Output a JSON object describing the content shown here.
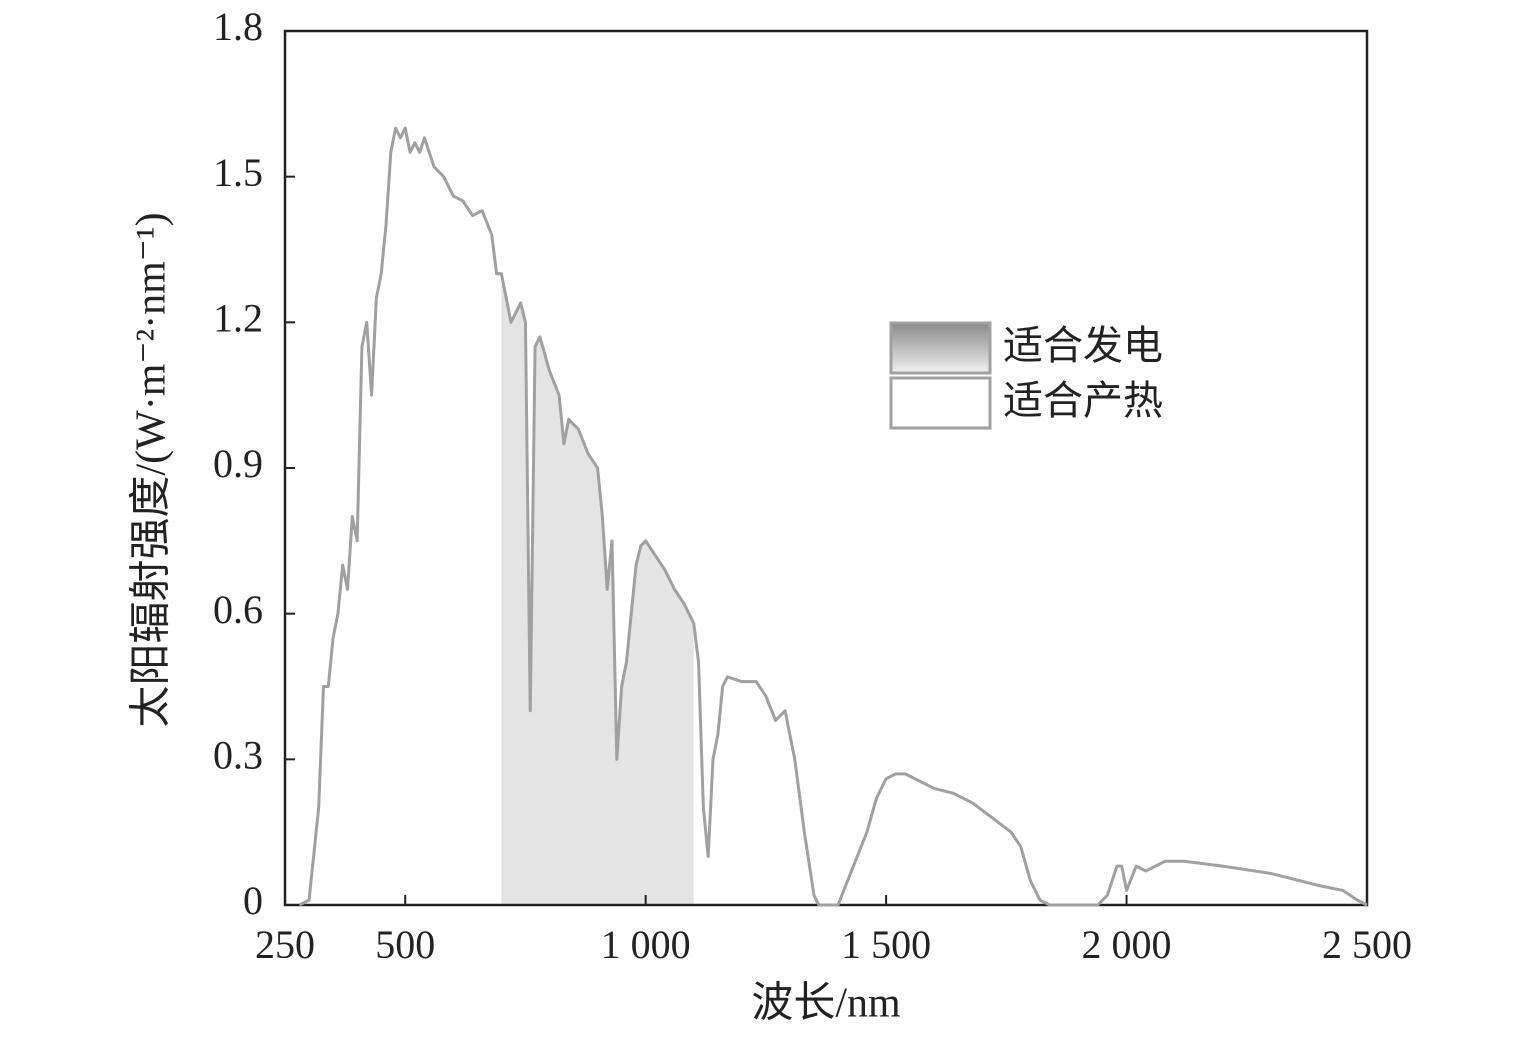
{
  "chart_data": {
    "type": "line",
    "xlabel": "波长/nm",
    "ylabel": "太阳辐射强度/(W·m⁻²·nm⁻¹)",
    "x": [
      280,
      300,
      320,
      330,
      340,
      350,
      360,
      370,
      380,
      390,
      400,
      410,
      420,
      430,
      440,
      450,
      460,
      470,
      480,
      490,
      500,
      510,
      520,
      530,
      540,
      550,
      560,
      580,
      600,
      620,
      640,
      660,
      680,
      690,
      700,
      710,
      720,
      730,
      740,
      750,
      760,
      770,
      780,
      800,
      820,
      830,
      840,
      860,
      880,
      900,
      910,
      920,
      930,
      940,
      950,
      960,
      980,
      990,
      1000,
      1020,
      1040,
      1060,
      1080,
      1100,
      1110,
      1120,
      1130,
      1140,
      1150,
      1160,
      1170,
      1200,
      1230,
      1250,
      1270,
      1290,
      1310,
      1330,
      1350,
      1360,
      1400,
      1420,
      1440,
      1460,
      1480,
      1500,
      1520,
      1540,
      1560,
      1600,
      1640,
      1680,
      1720,
      1760,
      1780,
      1800,
      1820,
      1840,
      1940,
      1960,
      1980,
      1990,
      2000,
      2020,
      2040,
      2080,
      2120,
      2200,
      2300,
      2400,
      2450,
      2480,
      2500
    ],
    "series": [
      {
        "color": "#a0a0a0",
        "values": [
          0,
          0.01,
          0.2,
          0.45,
          0.45,
          0.55,
          0.6,
          0.7,
          0.65,
          0.8,
          0.75,
          1.15,
          1.2,
          1.05,
          1.25,
          1.3,
          1.4,
          1.55,
          1.6,
          1.58,
          1.6,
          1.55,
          1.57,
          1.55,
          1.58,
          1.55,
          1.52,
          1.5,
          1.46,
          1.45,
          1.42,
          1.43,
          1.38,
          1.3,
          1.3,
          1.25,
          1.2,
          1.22,
          1.24,
          1.2,
          0.4,
          1.15,
          1.17,
          1.1,
          1.05,
          0.95,
          1.0,
          0.98,
          0.93,
          0.9,
          0.8,
          0.65,
          0.75,
          0.3,
          0.45,
          0.5,
          0.7,
          0.74,
          0.75,
          0.72,
          0.69,
          0.65,
          0.62,
          0.58,
          0.5,
          0.2,
          0.1,
          0.3,
          0.35,
          0.45,
          0.47,
          0.46,
          0.46,
          0.43,
          0.38,
          0.4,
          0.3,
          0.15,
          0.02,
          0,
          0,
          0.05,
          0.1,
          0.15,
          0.22,
          0.26,
          0.27,
          0.27,
          0.26,
          0.24,
          0.23,
          0.21,
          0.18,
          0.15,
          0.12,
          0.05,
          0.01,
          0,
          0,
          0.02,
          0.08,
          0.08,
          0.03,
          0.08,
          0.07,
          0.09,
          0.09,
          0.08,
          0.065,
          0.04,
          0.03,
          0.01,
          0
        ]
      }
    ],
    "regions": [
      {
        "name": "适合发电",
        "x": [
          700,
          1100
        ],
        "color": "#d8d8d8"
      },
      {
        "name": "适合产热",
        "color": "#ffffff"
      }
    ],
    "xlim": [
      250,
      2500
    ],
    "xticks": [
      250,
      500,
      {
        "value": 1000,
        "label": "1 000"
      },
      {
        "value": 1500,
        "label": "1 500"
      },
      {
        "value": 2000,
        "label": "2 000"
      },
      {
        "value": 2500,
        "label": "2 500"
      }
    ],
    "ylim": [
      0,
      1.8
    ],
    "yticks": [
      0,
      0.3,
      0.6,
      0.9,
      1.2,
      1.5,
      1.8
    ]
  }
}
